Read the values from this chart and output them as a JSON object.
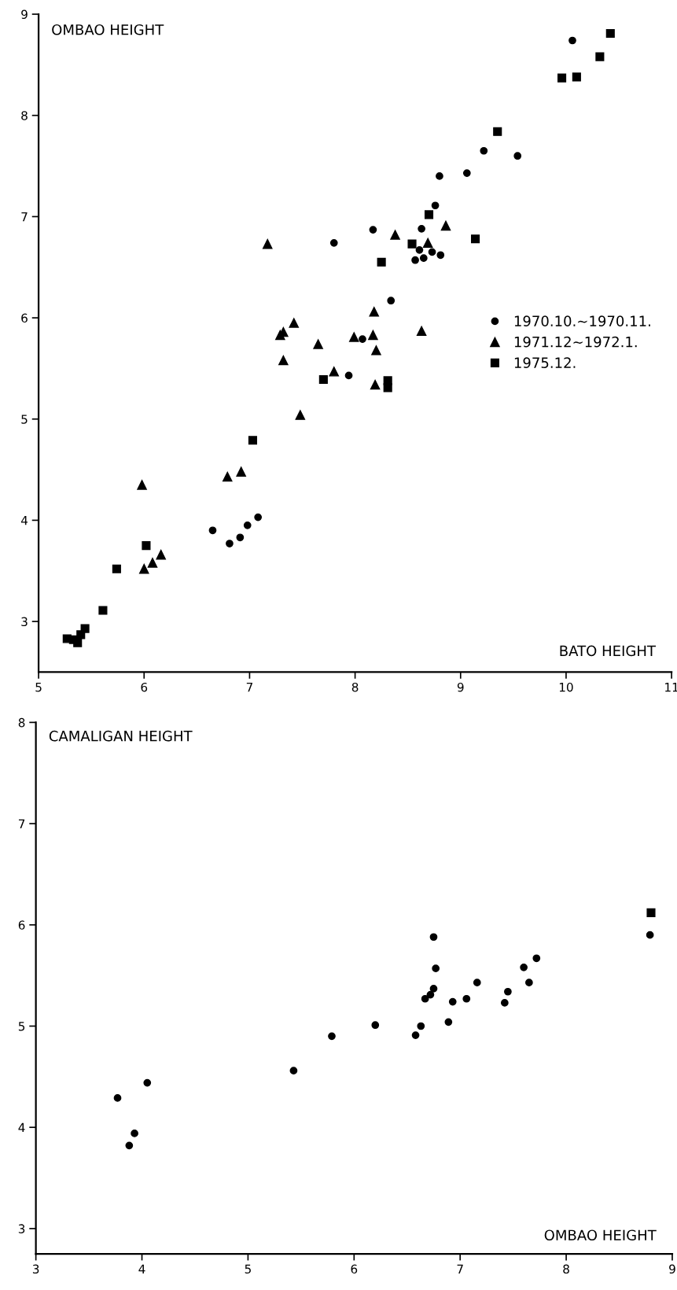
{
  "chart_data": [
    {
      "type": "scatter",
      "xlabel": "BATO HEIGHT",
      "ylabel": "OMBAO HEIGHT",
      "xlim": [
        5,
        11
      ],
      "ylim": [
        2.5,
        9
      ],
      "xticks": [
        5,
        6,
        7,
        8,
        9,
        10,
        11
      ],
      "yticks": [
        3,
        4,
        5,
        6,
        7,
        8,
        9
      ],
      "grid": false,
      "legend": "center right",
      "series": [
        {
          "name": "1970.10.∼1970.11.",
          "color": "#000000",
          "marker": "circle",
          "x": [
            7.8,
            6.65,
            6.81,
            6.91,
            6.98,
            7.08,
            10.06,
            9.22,
            9.54,
            8.8,
            9.06,
            8.76,
            8.17,
            8.63,
            8.61,
            8.57,
            8.65,
            8.73,
            8.81,
            8.34,
            8.07,
            7.94
          ],
          "values": [
            6.74,
            3.9,
            3.77,
            3.83,
            3.95,
            4.03,
            8.74,
            7.65,
            7.6,
            7.4,
            7.43,
            7.11,
            6.87,
            6.88,
            6.67,
            6.57,
            6.59,
            6.65,
            6.62,
            6.17,
            5.79,
            5.43
          ]
        },
        {
          "name": "1971.12∼1972.1.",
          "color": "#000000",
          "marker": "triangle",
          "x": [
            7.17,
            7.29,
            7.32,
            7.42,
            7.32,
            7.65,
            7.48,
            7.8,
            6.79,
            6.92,
            5.98,
            6.0,
            6.08,
            6.16,
            8.38,
            8.86,
            8.69,
            8.18,
            7.99,
            8.17,
            8.2,
            8.63,
            8.19
          ],
          "values": [
            6.73,
            5.83,
            5.86,
            5.95,
            5.58,
            5.74,
            5.04,
            5.47,
            4.43,
            4.48,
            4.35,
            3.52,
            3.58,
            3.66,
            6.82,
            6.91,
            6.74,
            6.06,
            5.81,
            5.83,
            5.68,
            5.87,
            5.34
          ]
        },
        {
          "name": "1975.12.",
          "color": "#000000",
          "marker": "square",
          "x": [
            7.7,
            7.03,
            6.02,
            5.74,
            5.61,
            5.27,
            5.33,
            5.37,
            5.4,
            5.44,
            10.42,
            10.32,
            9.96,
            10.1,
            9.35,
            8.7,
            8.54,
            8.25,
            9.14,
            8.31,
            8.31
          ],
          "values": [
            5.39,
            4.79,
            3.75,
            3.52,
            3.11,
            2.83,
            2.82,
            2.79,
            2.87,
            2.93,
            8.81,
            8.58,
            8.37,
            8.38,
            7.84,
            7.02,
            6.73,
            6.55,
            6.78,
            5.38,
            5.31
          ]
        }
      ]
    },
    {
      "type": "scatter",
      "xlabel": "OMBAO HEIGHT",
      "ylabel": "CAMALIGAN HEIGHT",
      "xlim": [
        3,
        9
      ],
      "ylim": [
        2.75,
        8
      ],
      "xticks": [
        3,
        4,
        5,
        6,
        7,
        8,
        9
      ],
      "yticks": [
        3,
        4,
        5,
        6,
        7,
        8
      ],
      "grid": false,
      "legend": false,
      "series": [
        {
          "color": "#000000",
          "marker": "circle",
          "x": [
            3.77,
            3.88,
            3.93,
            4.05,
            5.43,
            5.79,
            6.2,
            6.58,
            6.63,
            6.67,
            6.72,
            6.75,
            6.77,
            6.75,
            6.89,
            6.93,
            7.06,
            7.16,
            7.42,
            7.45,
            7.6,
            7.65,
            7.72,
            8.79
          ],
          "values": [
            4.29,
            3.82,
            3.94,
            4.44,
            4.56,
            4.9,
            5.01,
            4.91,
            5.0,
            5.27,
            5.31,
            5.37,
            5.57,
            5.88,
            5.04,
            5.24,
            5.27,
            5.43,
            5.23,
            5.34,
            5.58,
            5.43,
            5.67,
            5.9
          ]
        },
        {
          "color": "#000000",
          "marker": "square",
          "x": [
            8.8
          ],
          "values": [
            6.12
          ]
        }
      ]
    }
  ]
}
